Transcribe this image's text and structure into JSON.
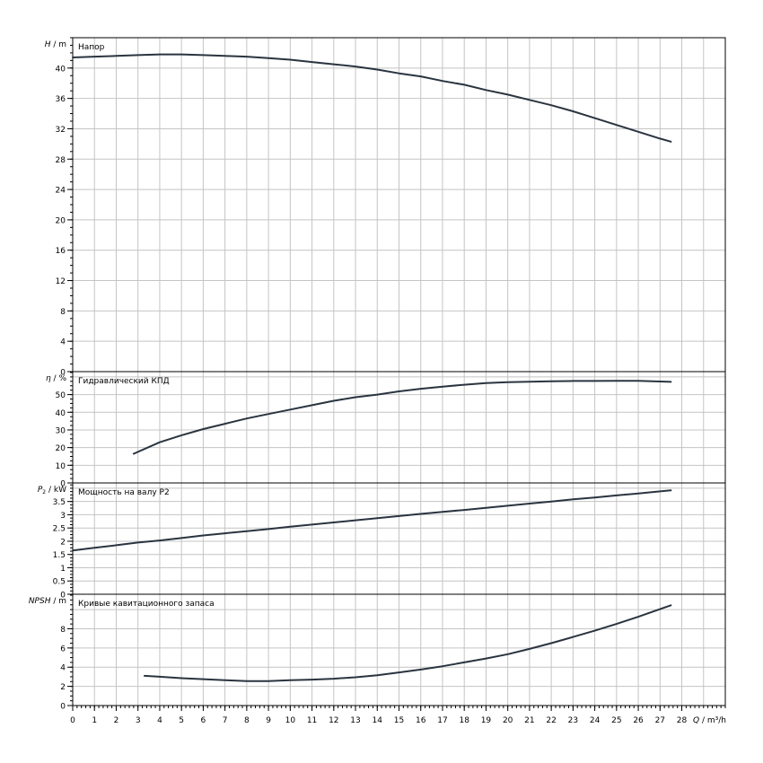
{
  "chart_data": [
    {
      "type": "line",
      "ylabel": "H / m",
      "ylabel_var": "H",
      "ylabel_unit": " / m",
      "title": "Напор",
      "ylim": [
        0,
        44
      ],
      "yticks": [
        0,
        4,
        8,
        12,
        16,
        20,
        24,
        28,
        32,
        36,
        40
      ],
      "series": [
        {
          "x": [
            0,
            1,
            2,
            3,
            4,
            5,
            6,
            7,
            8,
            9,
            10,
            11,
            12,
            13,
            14,
            15,
            16,
            17,
            18,
            19,
            20,
            21,
            22,
            23,
            24,
            25,
            26,
            27,
            27.5
          ],
          "y": [
            41.4,
            41.5,
            41.6,
            41.7,
            41.8,
            41.8,
            41.7,
            41.6,
            41.5,
            41.3,
            41.1,
            40.8,
            40.5,
            40.2,
            39.8,
            39.3,
            38.9,
            38.3,
            37.8,
            37.1,
            36.5,
            35.8,
            35.1,
            34.3,
            33.4,
            32.5,
            31.6,
            30.7,
            30.3
          ]
        }
      ]
    },
    {
      "type": "line",
      "ylabel": "η / %",
      "ylabel_var": "η",
      "ylabel_unit": " / %",
      "title": "Гидравлический КПД",
      "ylim": [
        0,
        63
      ],
      "yticks": [
        0,
        10,
        20,
        30,
        40,
        50
      ],
      "series": [
        {
          "x": [
            2.8,
            4,
            5,
            6,
            7,
            8,
            9,
            10,
            11,
            12,
            13,
            14,
            15,
            16,
            17,
            18,
            19,
            20,
            21,
            22,
            23,
            24,
            25,
            26,
            27,
            27.5
          ],
          "y": [
            16.5,
            23,
            27,
            30.5,
            33.5,
            36.5,
            39,
            41.5,
            44,
            46.5,
            48.5,
            50,
            51.8,
            53.3,
            54.5,
            55.6,
            56.5,
            57,
            57.3,
            57.5,
            57.7,
            57.7,
            57.8,
            57.8,
            57.4,
            57.2
          ]
        }
      ]
    },
    {
      "type": "line",
      "ylabel": "P₂ / kW",
      "ylabel_var": "P",
      "ylabel_sub": "2",
      "ylabel_unit": " / kW",
      "title": "Мощность на валу P2",
      "ylim": [
        0,
        4.2
      ],
      "yticks": [
        0,
        0.5,
        1,
        1.5,
        2,
        2.5,
        3,
        3.5
      ],
      "series": [
        {
          "x": [
            0,
            1,
            2,
            3,
            4,
            5,
            6,
            7,
            8,
            9,
            10,
            11,
            12,
            13,
            14,
            15,
            16,
            17,
            18,
            19,
            20,
            21,
            22,
            23,
            24,
            25,
            26,
            27,
            27.5
          ],
          "y": [
            1.65,
            1.75,
            1.85,
            1.95,
            2.03,
            2.12,
            2.22,
            2.3,
            2.38,
            2.46,
            2.55,
            2.63,
            2.71,
            2.79,
            2.87,
            2.95,
            3.03,
            3.11,
            3.18,
            3.26,
            3.34,
            3.42,
            3.5,
            3.58,
            3.65,
            3.73,
            3.8,
            3.88,
            3.92
          ]
        }
      ]
    },
    {
      "type": "line",
      "ylabel": "NPSH / m",
      "ylabel_var": "NPSH",
      "ylabel_unit": " / m",
      "title": "Кривые кавитационного запаса",
      "ylim": [
        0,
        11.6
      ],
      "yticks": [
        0,
        2,
        4,
        6,
        8
      ],
      "series": [
        {
          "x": [
            3.3,
            4,
            5,
            6,
            7,
            8,
            9,
            10,
            11,
            12,
            13,
            14,
            15,
            16,
            17,
            18,
            19,
            20,
            21,
            22,
            23,
            24,
            25,
            26,
            27,
            27.5
          ],
          "y": [
            3.1,
            3.0,
            2.85,
            2.75,
            2.65,
            2.55,
            2.55,
            2.65,
            2.7,
            2.8,
            2.95,
            3.15,
            3.45,
            3.75,
            4.1,
            4.5,
            4.9,
            5.35,
            5.9,
            6.5,
            7.15,
            7.8,
            8.5,
            9.25,
            10.05,
            10.45
          ]
        }
      ]
    }
  ],
  "x_axis": {
    "label": "Q / m³/h",
    "xlim": [
      0,
      30
    ],
    "ticks": [
      0,
      1,
      2,
      3,
      4,
      5,
      6,
      7,
      8,
      9,
      10,
      11,
      12,
      13,
      14,
      15,
      16,
      17,
      18,
      19,
      20,
      21,
      22,
      23,
      24,
      25,
      26,
      27,
      28
    ],
    "label_var": "Q",
    "label_unit": " / m³/h"
  },
  "grid": true,
  "colors": {
    "curve": "#2a3440",
    "grid": "#c4c4c4",
    "frame": "#000000"
  }
}
